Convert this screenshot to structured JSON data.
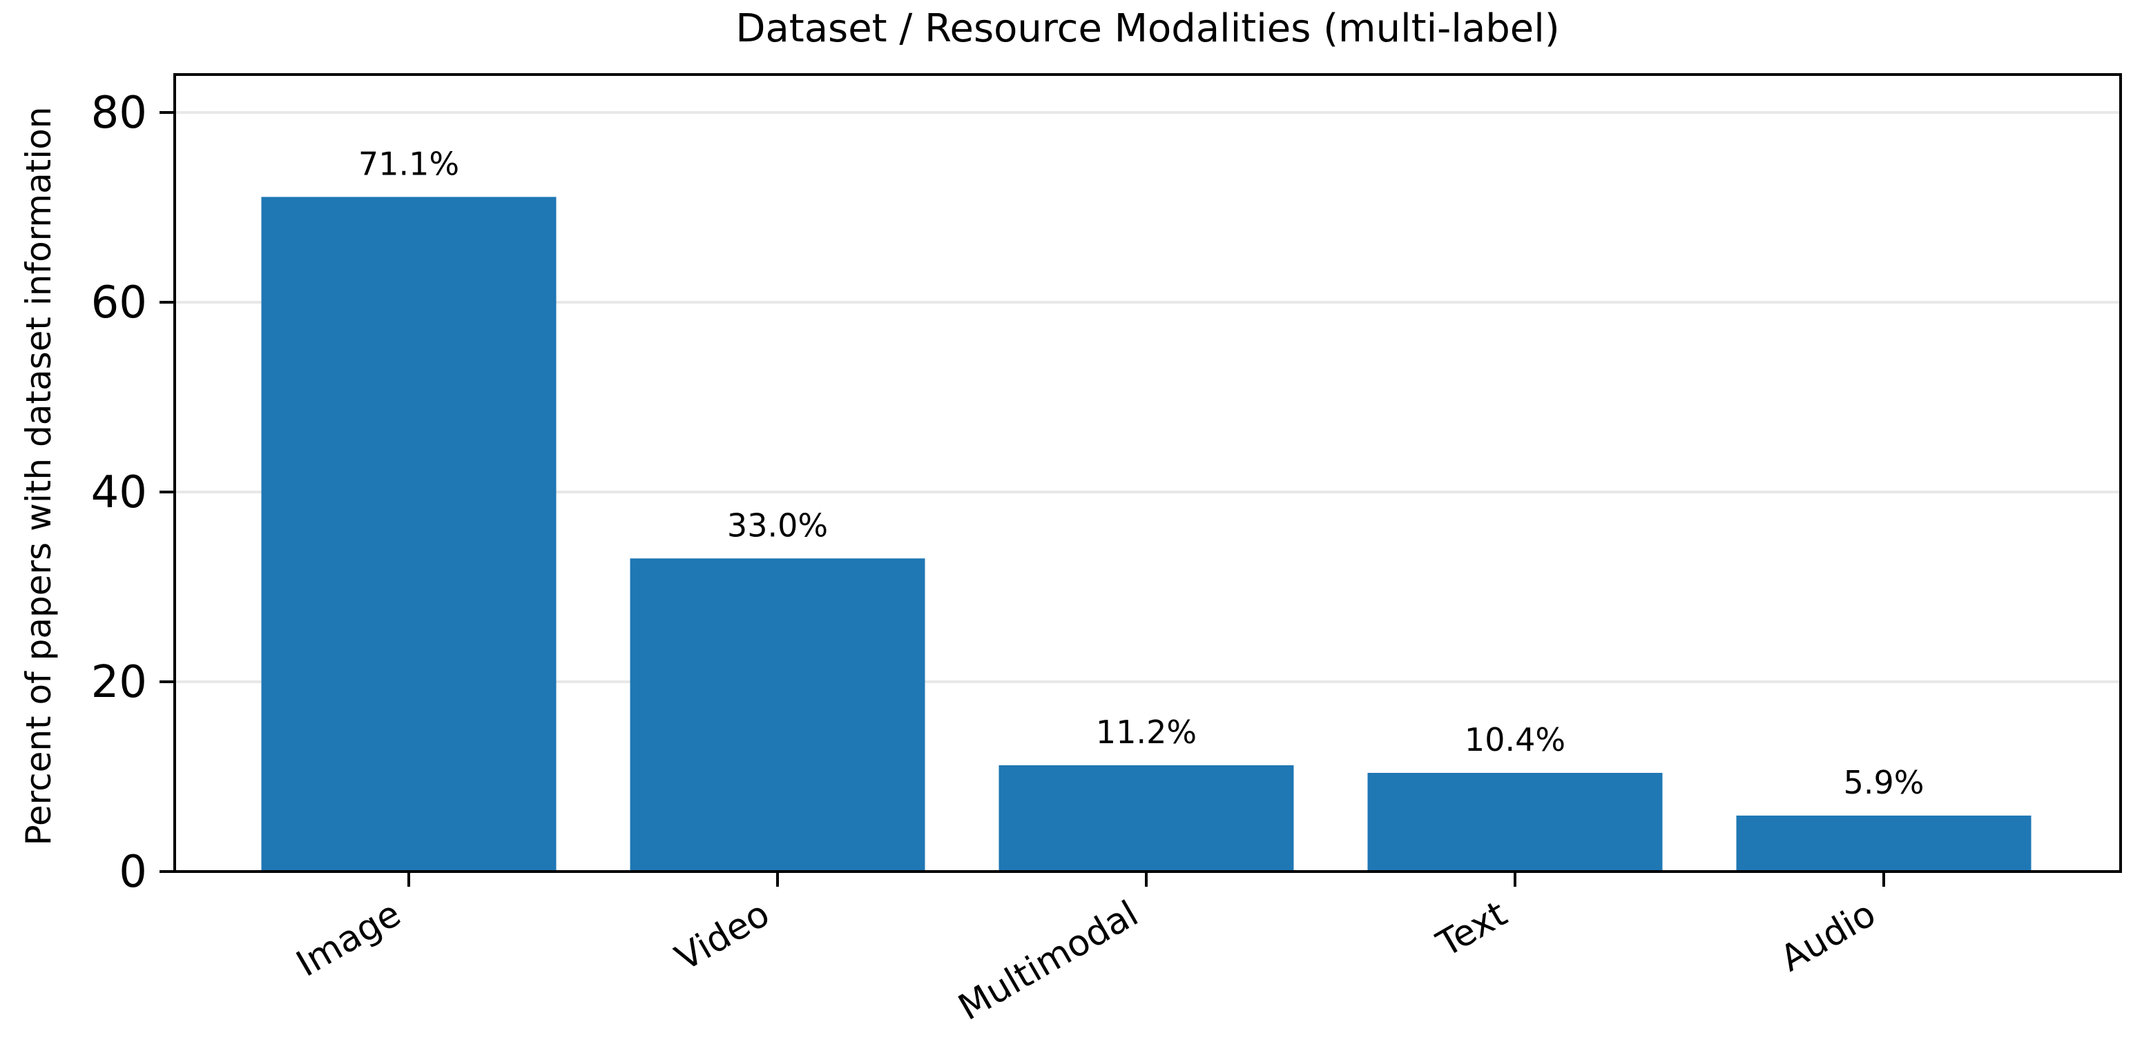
{
  "chart_data": {
    "type": "bar",
    "title": "Dataset / Resource Modalities (multi-label)",
    "xlabel": "",
    "ylabel": "Percent of papers with dataset information",
    "categories": [
      "Image",
      "Video",
      "Multimodal",
      "Text",
      "Audio"
    ],
    "values": [
      71.1,
      33.0,
      11.2,
      10.4,
      5.9
    ],
    "value_labels": [
      "71.1%",
      "33.0%",
      "11.2%",
      "10.4%",
      "5.9%"
    ],
    "ylim": [
      0,
      84
    ],
    "yticks": [
      0,
      20,
      40,
      60,
      80
    ],
    "grid": "horizontal",
    "bar_color": "#1f77b4",
    "grid_color": "#e8e8e8"
  }
}
